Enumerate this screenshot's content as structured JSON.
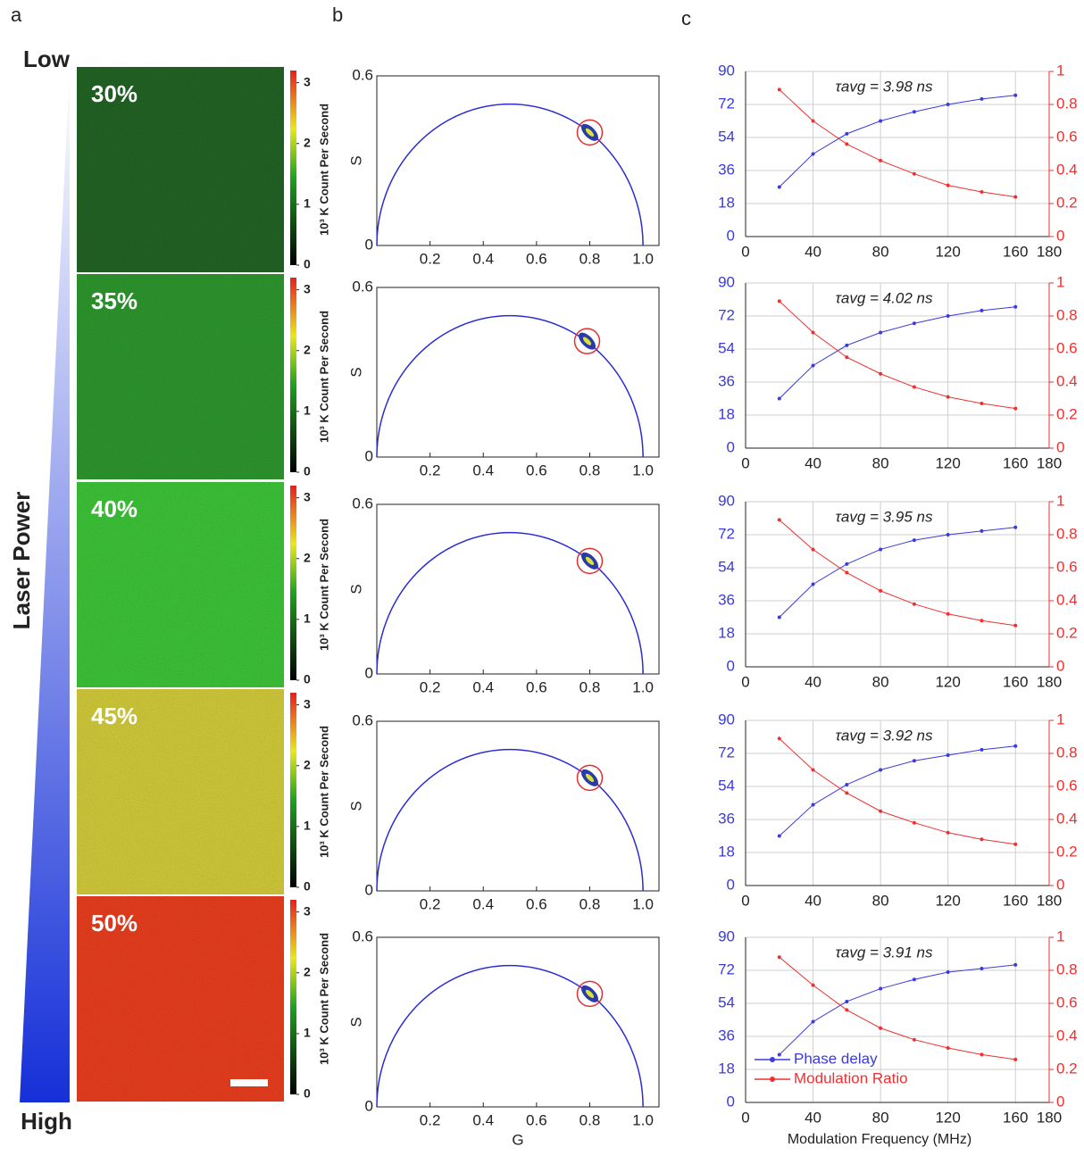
{
  "panel_labels": [
    "a",
    "b",
    "c"
  ],
  "panel_a": {
    "low_label": "Low",
    "high_label": "High",
    "axis_label": "Laser Power",
    "images": [
      {
        "label": "30%",
        "color": "#236626"
      },
      {
        "label": "35%",
        "color": "#2f9a2f"
      },
      {
        "label": "40%",
        "color": "#3ec83a"
      },
      {
        "label": "45%",
        "color": "#d6cf3c"
      },
      {
        "label": "50%",
        "color": "#ee3f1e"
      }
    ],
    "colorbar": {
      "label": "10³ K Count Per Second",
      "lim": [
        0,
        3.2
      ],
      "ticks": [
        0,
        1,
        2,
        3
      ]
    }
  },
  "chart_data": [
    {
      "type": "phasor",
      "ylabel": "S",
      "xlim": [
        0,
        1.06
      ],
      "ylim": [
        0,
        0.6
      ],
      "xticks": [
        0.2,
        0.4,
        0.6,
        0.8,
        {
          "value": 1,
          "label": "1.0"
        }
      ],
      "yticks": [
        0,
        {
          "value": 0.6,
          "label": "0.6"
        }
      ],
      "x": [
        0.8
      ],
      "values": [
        0.4
      ],
      "color": "#2b2bd6",
      "marker_color": "#e03030"
    },
    {
      "type": "phasor",
      "ylabel": "S",
      "xlim": [
        0,
        1.06
      ],
      "ylim": [
        0,
        0.6
      ],
      "xticks": [
        0.2,
        0.4,
        0.6,
        0.8,
        {
          "value": 1,
          "label": "1.0"
        }
      ],
      "yticks": [
        0,
        {
          "value": 0.6,
          "label": "0.6"
        }
      ],
      "x": [
        0.79
      ],
      "values": [
        0.41
      ],
      "color": "#2b2bd6",
      "marker_color": "#e03030"
    },
    {
      "type": "phasor",
      "ylabel": "S",
      "xlim": [
        0,
        1.06
      ],
      "ylim": [
        0,
        0.6
      ],
      "xticks": [
        0.2,
        0.4,
        0.6,
        0.8,
        {
          "value": 1,
          "label": "1.0"
        }
      ],
      "yticks": [
        0,
        {
          "value": 0.6,
          "label": "0.6"
        }
      ],
      "x": [
        0.8
      ],
      "values": [
        0.4
      ],
      "color": "#2b2bd6",
      "marker_color": "#e03030"
    },
    {
      "type": "phasor",
      "ylabel": "S",
      "xlim": [
        0,
        1.06
      ],
      "ylim": [
        0,
        0.6
      ],
      "xticks": [
        0.2,
        0.4,
        0.6,
        0.8,
        {
          "value": 1,
          "label": "1.0"
        }
      ],
      "yticks": [
        0,
        {
          "value": 0.6,
          "label": "0.6"
        }
      ],
      "x": [
        0.8
      ],
      "values": [
        0.4
      ],
      "color": "#2b2bd6",
      "marker_color": "#e03030"
    },
    {
      "type": "phasor",
      "ylabel": "S",
      "xlabel": "G",
      "xlim": [
        0,
        1.06
      ],
      "ylim": [
        0,
        0.6
      ],
      "xticks": [
        0.2,
        0.4,
        0.6,
        0.8,
        {
          "value": 1,
          "label": "1.0"
        }
      ],
      "yticks": [
        0,
        {
          "value": 0.6,
          "label": "0.6"
        }
      ],
      "x": [
        0.8
      ],
      "values": [
        0.4
      ],
      "color": "#2b2bd6",
      "marker_color": "#e03030"
    },
    {
      "type": "line",
      "annotation": "τavg = 3.98 ns",
      "x": [
        20,
        40,
        60,
        80,
        100,
        120,
        140,
        160
      ],
      "xlim": [
        0,
        180
      ],
      "xticks": [
        0,
        40,
        80,
        120,
        160,
        180
      ],
      "ylim": [
        0,
        90
      ],
      "yticks": [
        0,
        18,
        36,
        54,
        72,
        90
      ],
      "y2lim": [
        0,
        1
      ],
      "y2ticks": [
        0,
        0.2,
        0.4,
        0.6,
        0.8,
        1
      ],
      "grid": true,
      "series": [
        {
          "color": "#3a3ae0",
          "values": [
            27,
            45,
            56,
            63,
            68,
            72,
            75,
            77
          ]
        },
        {
          "color": "#ee3030",
          "axis": "y2",
          "values": [
            0.89,
            0.7,
            0.56,
            0.46,
            0.38,
            0.31,
            0.27,
            0.24
          ]
        }
      ]
    },
    {
      "type": "line",
      "annotation": "τavg = 4.02 ns",
      "x": [
        20,
        40,
        60,
        80,
        100,
        120,
        140,
        160
      ],
      "xlim": [
        0,
        180
      ],
      "xticks": [
        0,
        40,
        80,
        120,
        160,
        180
      ],
      "ylim": [
        0,
        90
      ],
      "yticks": [
        0,
        18,
        36,
        54,
        72,
        90
      ],
      "y2lim": [
        0,
        1
      ],
      "y2ticks": [
        0,
        0.2,
        0.4,
        0.6,
        0.8,
        1
      ],
      "grid": true,
      "series": [
        {
          "color": "#3a3ae0",
          "values": [
            27,
            45,
            56,
            63,
            68,
            72,
            75,
            77
          ]
        },
        {
          "color": "#ee3030",
          "axis": "y2",
          "values": [
            0.89,
            0.7,
            0.55,
            0.45,
            0.37,
            0.31,
            0.27,
            0.24
          ]
        }
      ]
    },
    {
      "type": "line",
      "annotation": "τavg = 3.95 ns",
      "x": [
        20,
        40,
        60,
        80,
        100,
        120,
        140,
        160
      ],
      "xlim": [
        0,
        180
      ],
      "xticks": [
        0,
        40,
        80,
        120,
        160,
        180
      ],
      "ylim": [
        0,
        90
      ],
      "yticks": [
        0,
        18,
        36,
        54,
        72,
        90
      ],
      "y2lim": [
        0,
        1
      ],
      "y2ticks": [
        0,
        0.2,
        0.4,
        0.6,
        0.8,
        1
      ],
      "grid": true,
      "series": [
        {
          "color": "#3a3ae0",
          "values": [
            27,
            45,
            56,
            64,
            69,
            72,
            74,
            76
          ]
        },
        {
          "color": "#ee3030",
          "axis": "y2",
          "values": [
            0.89,
            0.71,
            0.57,
            0.46,
            0.38,
            0.32,
            0.28,
            0.25
          ]
        }
      ]
    },
    {
      "type": "line",
      "annotation": "τavg = 3.92 ns",
      "x": [
        20,
        40,
        60,
        80,
        100,
        120,
        140,
        160
      ],
      "xlim": [
        0,
        180
      ],
      "xticks": [
        0,
        40,
        80,
        120,
        160,
        180
      ],
      "ylim": [
        0,
        90
      ],
      "yticks": [
        0,
        18,
        36,
        54,
        72,
        90
      ],
      "y2lim": [
        0,
        1
      ],
      "y2ticks": [
        0,
        0.2,
        0.4,
        0.6,
        0.8,
        1
      ],
      "grid": true,
      "series": [
        {
          "color": "#3a3ae0",
          "values": [
            27,
            44,
            55,
            63,
            68,
            71,
            74,
            76
          ]
        },
        {
          "color": "#ee3030",
          "axis": "y2",
          "values": [
            0.89,
            0.7,
            0.56,
            0.45,
            0.38,
            0.32,
            0.28,
            0.25
          ]
        }
      ]
    },
    {
      "type": "line",
      "annotation": "τavg = 3.91 ns",
      "xlabel": "Modulation Frequency (MHz)",
      "x": [
        20,
        40,
        60,
        80,
        100,
        120,
        140,
        160
      ],
      "xlim": [
        0,
        180
      ],
      "xticks": [
        0,
        40,
        80,
        120,
        160,
        180
      ],
      "ylim": [
        0,
        90
      ],
      "yticks": [
        0,
        18,
        36,
        54,
        72,
        90
      ],
      "y2lim": [
        0,
        1
      ],
      "y2ticks": [
        0,
        0.2,
        0.4,
        0.6,
        0.8,
        1
      ],
      "grid": true,
      "legend": "lower-left",
      "series": [
        {
          "name": "Phase delay",
          "color": "#3a3ae0",
          "values": [
            26,
            44,
            55,
            62,
            67,
            71,
            73,
            75
          ]
        },
        {
          "name": "Modulation Ratio",
          "color": "#ee3030",
          "axis": "y2",
          "values": [
            0.88,
            0.71,
            0.56,
            0.45,
            0.38,
            0.33,
            0.29,
            0.26
          ]
        }
      ]
    }
  ]
}
